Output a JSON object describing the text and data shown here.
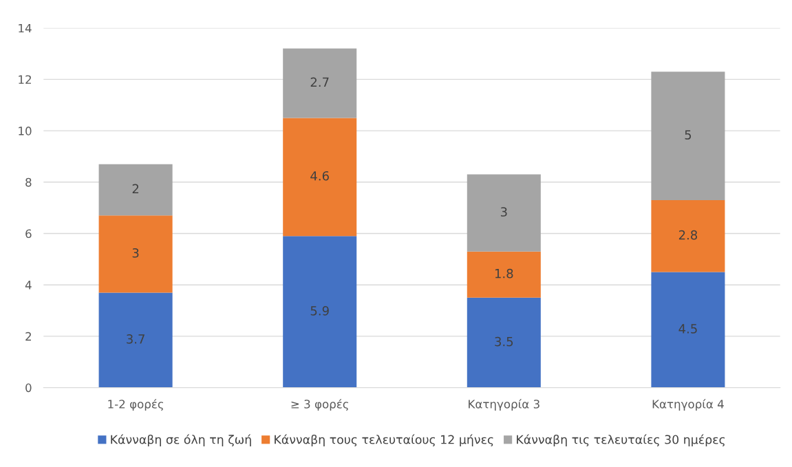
{
  "chart_data": {
    "type": "bar",
    "stacked": true,
    "categories": [
      "1-2 φορές",
      "≥ 3 φορές",
      "Κατηγορία 3",
      "Κατηγορία 4"
    ],
    "series": [
      {
        "name": "Κάνναβη σε όλη τη ζωή",
        "color": "#4472c4",
        "values": [
          3.7,
          5.9,
          3.5,
          4.5
        ]
      },
      {
        "name": "Κάνναβη τους τελευταίους 12 μήνες",
        "color": "#ed7d31",
        "values": [
          3,
          4.6,
          1.8,
          2.8
        ]
      },
      {
        "name": "Κάνναβη τις τελευταίες 30 ημέρες",
        "color": "#a5a5a5",
        "values": [
          2,
          2.7,
          3,
          5
        ]
      }
    ],
    "ylim": [
      0,
      14
    ],
    "yticks": [
      0,
      2,
      4,
      6,
      8,
      10,
      12,
      14
    ],
    "grid": "y",
    "legend": "bottom",
    "data_labels": true
  }
}
